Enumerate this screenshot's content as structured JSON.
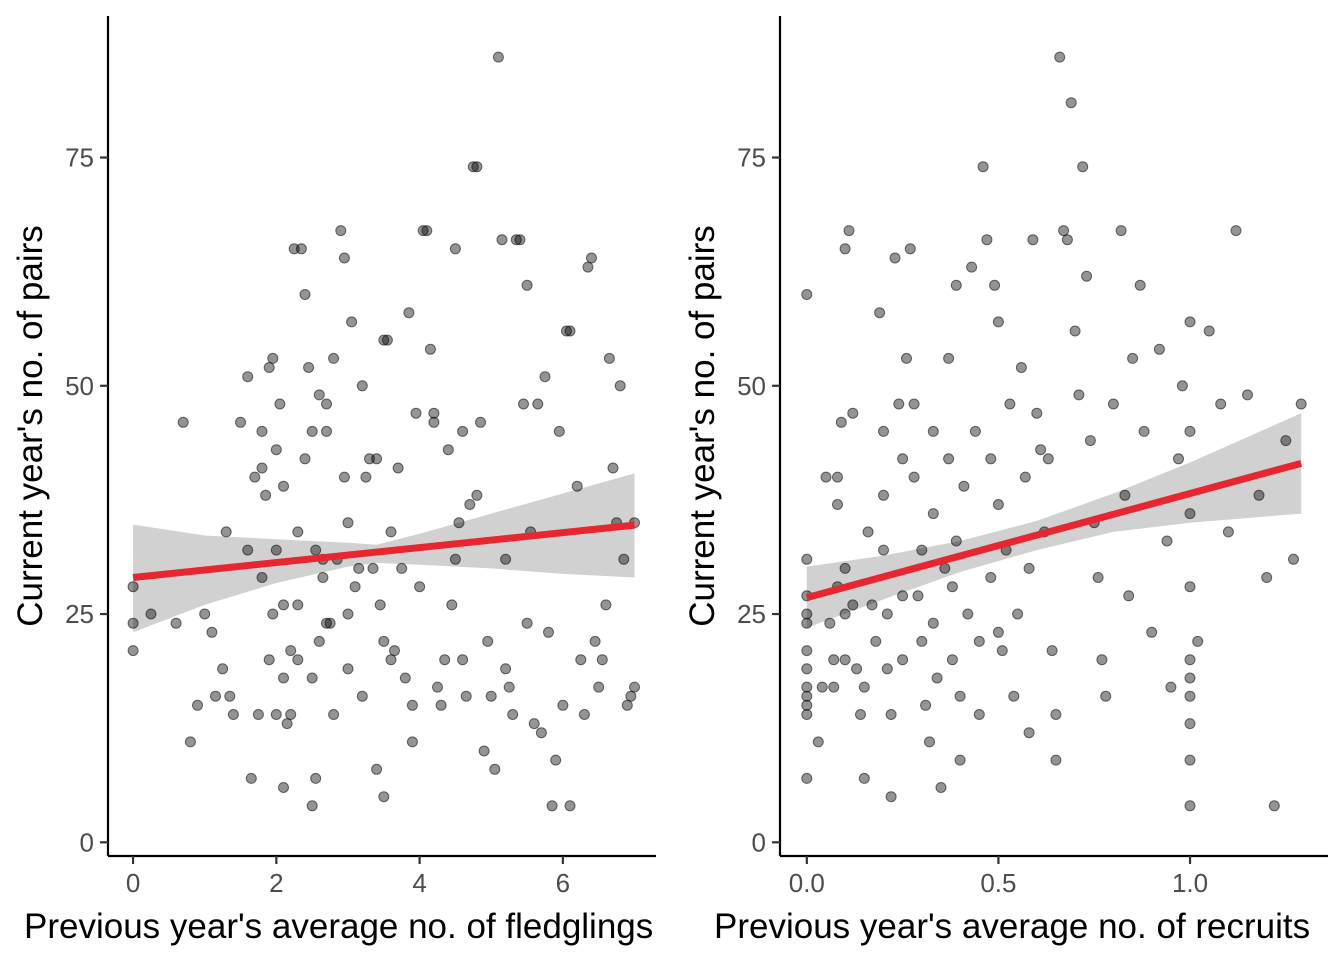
{
  "chart_data": [
    {
      "type": "scatter",
      "xlabel": "Previous year's average no. of fledglings",
      "ylabel": "Current year's no. of pairs",
      "xlim": [
        -0.35,
        7.3
      ],
      "ylim": [
        -1.5,
        90.5
      ],
      "x_ticks": [
        0,
        2,
        4,
        6
      ],
      "y_ticks": [
        0,
        25,
        50,
        75
      ],
      "x_tick_labels": [
        "0",
        "2",
        "4",
        "6"
      ],
      "y_tick_labels": [
        "0",
        "25",
        "50",
        "75"
      ],
      "grid": false,
      "legend": "none",
      "point_color": "#000000",
      "point_opacity": 0.42,
      "fit": {
        "type": "linear",
        "intercept": 29.0,
        "slope": 0.82,
        "x_range": [
          0,
          7
        ],
        "color": "#e8262f"
      },
      "confidence_band": {
        "color": "#cccccc",
        "lower": [
          [
            0,
            23.0
          ],
          [
            1,
            26.0
          ],
          [
            2,
            28.4
          ],
          [
            3,
            30.2
          ],
          [
            3.4,
            30.6
          ],
          [
            4,
            30.4
          ],
          [
            5,
            30.0
          ],
          [
            6,
            29.4
          ],
          [
            7,
            29.0
          ]
        ],
        "upper": [
          [
            0,
            34.8
          ],
          [
            1,
            33.6
          ],
          [
            2,
            33.2
          ],
          [
            3,
            32.8
          ],
          [
            3.4,
            32.6
          ],
          [
            4,
            33.8
          ],
          [
            5,
            36.0
          ],
          [
            6,
            38.2
          ],
          [
            7,
            40.4
          ]
        ]
      },
      "points": [
        [
          0,
          28
        ],
        [
          0,
          24
        ],
        [
          0,
          21
        ],
        [
          0.25,
          25
        ],
        [
          0.6,
          24
        ],
        [
          0.7,
          46
        ],
        [
          0.8,
          11
        ],
        [
          0.9,
          15
        ],
        [
          1.0,
          25
        ],
        [
          1.1,
          23
        ],
        [
          1.15,
          16
        ],
        [
          1.25,
          19
        ],
        [
          1.3,
          34
        ],
        [
          1.35,
          16
        ],
        [
          1.4,
          14
        ],
        [
          1.5,
          46
        ],
        [
          1.6,
          51
        ],
        [
          1.6,
          32
        ],
        [
          1.65,
          7
        ],
        [
          1.7,
          40
        ],
        [
          1.75,
          14
        ],
        [
          1.8,
          45
        ],
        [
          1.8,
          41
        ],
        [
          1.8,
          29
        ],
        [
          1.85,
          38
        ],
        [
          1.9,
          20
        ],
        [
          1.9,
          52
        ],
        [
          1.95,
          53
        ],
        [
          1.95,
          25
        ],
        [
          2.0,
          43
        ],
        [
          2.0,
          32
        ],
        [
          2.0,
          14
        ],
        [
          2.05,
          48
        ],
        [
          2.1,
          39
        ],
        [
          2.1,
          26
        ],
        [
          2.1,
          18
        ],
        [
          2.1,
          6
        ],
        [
          2.15,
          13
        ],
        [
          2.2,
          21
        ],
        [
          2.2,
          14
        ],
        [
          2.25,
          65
        ],
        [
          2.3,
          26
        ],
        [
          2.3,
          34
        ],
        [
          2.3,
          20
        ],
        [
          2.35,
          65
        ],
        [
          2.4,
          42
        ],
        [
          2.4,
          60
        ],
        [
          2.45,
          52
        ],
        [
          2.5,
          45
        ],
        [
          2.5,
          18
        ],
        [
          2.5,
          4
        ],
        [
          2.55,
          7
        ],
        [
          2.55,
          32
        ],
        [
          2.6,
          49
        ],
        [
          2.6,
          22
        ],
        [
          2.65,
          31
        ],
        [
          2.65,
          29
        ],
        [
          2.7,
          48
        ],
        [
          2.7,
          24
        ],
        [
          2.7,
          45
        ],
        [
          2.75,
          24
        ],
        [
          2.8,
          53
        ],
        [
          2.8,
          14
        ],
        [
          2.85,
          31
        ],
        [
          2.9,
          67
        ],
        [
          2.95,
          64
        ],
        [
          2.95,
          40
        ],
        [
          3.0,
          35
        ],
        [
          3.0,
          25
        ],
        [
          3.0,
          19
        ],
        [
          3.05,
          57
        ],
        [
          3.1,
          28
        ],
        [
          3.15,
          30
        ],
        [
          3.2,
          50
        ],
        [
          3.2,
          16
        ],
        [
          3.25,
          40
        ],
        [
          3.3,
          42
        ],
        [
          3.35,
          30
        ],
        [
          3.4,
          42
        ],
        [
          3.4,
          8
        ],
        [
          3.45,
          26
        ],
        [
          3.5,
          55
        ],
        [
          3.5,
          22
        ],
        [
          3.5,
          5
        ],
        [
          3.55,
          55
        ],
        [
          3.6,
          34
        ],
        [
          3.6,
          20
        ],
        [
          3.65,
          21
        ],
        [
          3.7,
          41
        ],
        [
          3.75,
          30
        ],
        [
          3.8,
          18
        ],
        [
          3.85,
          58
        ],
        [
          3.9,
          11
        ],
        [
          3.9,
          15
        ],
        [
          3.95,
          47
        ],
        [
          4.0,
          28
        ],
        [
          4.05,
          67
        ],
        [
          4.1,
          67
        ],
        [
          4.15,
          54
        ],
        [
          4.2,
          46
        ],
        [
          4.2,
          47
        ],
        [
          4.25,
          17
        ],
        [
          4.3,
          15
        ],
        [
          4.35,
          20
        ],
        [
          4.4,
          43
        ],
        [
          4.45,
          26
        ],
        [
          4.5,
          31
        ],
        [
          4.5,
          65
        ],
        [
          4.55,
          35
        ],
        [
          4.6,
          45
        ],
        [
          4.6,
          20
        ],
        [
          4.65,
          16
        ],
        [
          4.7,
          37
        ],
        [
          4.75,
          74
        ],
        [
          4.8,
          74
        ],
        [
          4.8,
          38
        ],
        [
          4.85,
          46
        ],
        [
          4.9,
          10
        ],
        [
          4.95,
          22
        ],
        [
          5.0,
          16
        ],
        [
          5.05,
          8
        ],
        [
          5.1,
          86
        ],
        [
          5.15,
          66
        ],
        [
          5.2,
          31
        ],
        [
          5.2,
          19
        ],
        [
          5.25,
          17
        ],
        [
          5.3,
          14
        ],
        [
          5.35,
          66
        ],
        [
          5.4,
          66
        ],
        [
          5.45,
          48
        ],
        [
          5.5,
          61
        ],
        [
          5.5,
          24
        ],
        [
          5.55,
          34
        ],
        [
          5.6,
          13
        ],
        [
          5.65,
          48
        ],
        [
          5.7,
          12
        ],
        [
          5.75,
          51
        ],
        [
          5.8,
          23
        ],
        [
          5.85,
          4
        ],
        [
          5.9,
          9
        ],
        [
          5.95,
          45
        ],
        [
          6.0,
          15
        ],
        [
          6.05,
          56
        ],
        [
          6.1,
          56
        ],
        [
          6.1,
          4
        ],
        [
          6.2,
          39
        ],
        [
          6.25,
          20
        ],
        [
          6.3,
          14
        ],
        [
          6.35,
          63
        ],
        [
          6.4,
          64
        ],
        [
          6.45,
          22
        ],
        [
          6.5,
          17
        ],
        [
          6.55,
          20
        ],
        [
          6.6,
          26
        ],
        [
          6.65,
          53
        ],
        [
          6.7,
          41
        ],
        [
          6.75,
          35
        ],
        [
          6.8,
          50
        ],
        [
          6.85,
          31
        ],
        [
          6.9,
          15
        ],
        [
          6.95,
          16
        ],
        [
          7.0,
          17
        ],
        [
          7.0,
          35
        ]
      ]
    },
    {
      "type": "scatter",
      "xlabel": "Previous year's average no. of recruits",
      "ylabel": "Current year's no. of pairs",
      "xlim": [
        -0.07,
        1.36
      ],
      "ylim": [
        -1.5,
        90.5
      ],
      "x_ticks": [
        0.0,
        0.5,
        1.0
      ],
      "y_ticks": [
        0,
        25,
        50,
        75
      ],
      "x_tick_labels": [
        "0.0",
        "0.5",
        "1.0"
      ],
      "y_tick_labels": [
        "0",
        "25",
        "50",
        "75"
      ],
      "grid": false,
      "legend": "none",
      "point_color": "#000000",
      "point_opacity": 0.42,
      "fit": {
        "type": "linear",
        "intercept": 26.8,
        "slope": 11.4,
        "x_range": [
          0,
          1.29
        ],
        "color": "#e8262f"
      },
      "confidence_band": {
        "color": "#cccccc",
        "lower": [
          [
            0,
            23.5
          ],
          [
            0.2,
            26.6
          ],
          [
            0.4,
            29.6
          ],
          [
            0.6,
            32.0
          ],
          [
            0.8,
            34.0
          ],
          [
            1.0,
            35.0
          ],
          [
            1.29,
            36.0
          ]
        ],
        "upper": [
          [
            0,
            30.2
          ],
          [
            0.2,
            31.4
          ],
          [
            0.4,
            33.0
          ],
          [
            0.6,
            35.2
          ],
          [
            0.8,
            38.2
          ],
          [
            1.0,
            41.6
          ],
          [
            1.29,
            47.0
          ]
        ]
      },
      "points": [
        [
          0,
          60
        ],
        [
          0,
          31
        ],
        [
          0,
          27
        ],
        [
          0,
          25
        ],
        [
          0,
          24
        ],
        [
          0,
          21
        ],
        [
          0,
          19
        ],
        [
          0,
          17
        ],
        [
          0,
          16
        ],
        [
          0,
          15
        ],
        [
          0,
          14
        ],
        [
          0,
          7
        ],
        [
          0.03,
          11
        ],
        [
          0.04,
          17
        ],
        [
          0.05,
          40
        ],
        [
          0.06,
          24
        ],
        [
          0.07,
          20
        ],
        [
          0.07,
          17
        ],
        [
          0.08,
          40
        ],
        [
          0.08,
          37
        ],
        [
          0.08,
          28
        ],
        [
          0.09,
          46
        ],
        [
          0.1,
          65
        ],
        [
          0.1,
          30
        ],
        [
          0.1,
          25
        ],
        [
          0.1,
          20
        ],
        [
          0.11,
          67
        ],
        [
          0.12,
          47
        ],
        [
          0.12,
          26
        ],
        [
          0.13,
          19
        ],
        [
          0.14,
          14
        ],
        [
          0.15,
          17
        ],
        [
          0.15,
          7
        ],
        [
          0.16,
          34
        ],
        [
          0.17,
          26
        ],
        [
          0.18,
          22
        ],
        [
          0.19,
          58
        ],
        [
          0.2,
          45
        ],
        [
          0.2,
          38
        ],
        [
          0.2,
          32
        ],
        [
          0.21,
          25
        ],
        [
          0.21,
          19
        ],
        [
          0.22,
          14
        ],
        [
          0.22,
          5
        ],
        [
          0.23,
          64
        ],
        [
          0.24,
          48
        ],
        [
          0.25,
          42
        ],
        [
          0.25,
          27
        ],
        [
          0.25,
          20
        ],
        [
          0.26,
          53
        ],
        [
          0.27,
          65
        ],
        [
          0.28,
          48
        ],
        [
          0.28,
          40
        ],
        [
          0.29,
          27
        ],
        [
          0.3,
          32
        ],
        [
          0.3,
          22
        ],
        [
          0.31,
          15
        ],
        [
          0.32,
          11
        ],
        [
          0.33,
          45
        ],
        [
          0.33,
          36
        ],
        [
          0.33,
          24
        ],
        [
          0.34,
          18
        ],
        [
          0.35,
          6
        ],
        [
          0.36,
          30
        ],
        [
          0.37,
          53
        ],
        [
          0.37,
          42
        ],
        [
          0.38,
          28
        ],
        [
          0.38,
          20
        ],
        [
          0.39,
          61
        ],
        [
          0.39,
          33
        ],
        [
          0.4,
          16
        ],
        [
          0.4,
          9
        ],
        [
          0.41,
          39
        ],
        [
          0.42,
          25
        ],
        [
          0.43,
          63
        ],
        [
          0.44,
          45
        ],
        [
          0.45,
          22
        ],
        [
          0.45,
          14
        ],
        [
          0.46,
          74
        ],
        [
          0.47,
          66
        ],
        [
          0.48,
          42
        ],
        [
          0.48,
          29
        ],
        [
          0.49,
          61
        ],
        [
          0.5,
          57
        ],
        [
          0.5,
          37
        ],
        [
          0.5,
          23
        ],
        [
          0.51,
          21
        ],
        [
          0.52,
          32
        ],
        [
          0.53,
          48
        ],
        [
          0.54,
          16
        ],
        [
          0.55,
          25
        ],
        [
          0.56,
          52
        ],
        [
          0.57,
          40
        ],
        [
          0.58,
          30
        ],
        [
          0.58,
          12
        ],
        [
          0.59,
          66
        ],
        [
          0.6,
          47
        ],
        [
          0.61,
          43
        ],
        [
          0.62,
          34
        ],
        [
          0.63,
          42
        ],
        [
          0.64,
          21
        ],
        [
          0.65,
          14
        ],
        [
          0.65,
          9
        ],
        [
          0.66,
          86
        ],
        [
          0.67,
          67
        ],
        [
          0.68,
          66
        ],
        [
          0.69,
          81
        ],
        [
          0.7,
          56
        ],
        [
          0.71,
          49
        ],
        [
          0.72,
          74
        ],
        [
          0.73,
          62
        ],
        [
          0.74,
          44
        ],
        [
          0.75,
          35
        ],
        [
          0.76,
          29
        ],
        [
          0.77,
          20
        ],
        [
          0.78,
          16
        ],
        [
          0.8,
          48
        ],
        [
          0.82,
          67
        ],
        [
          0.83,
          38
        ],
        [
          0.84,
          27
        ],
        [
          0.85,
          53
        ],
        [
          0.87,
          61
        ],
        [
          0.88,
          45
        ],
        [
          0.9,
          23
        ],
        [
          0.92,
          54
        ],
        [
          0.94,
          33
        ],
        [
          0.95,
          17
        ],
        [
          0.97,
          42
        ],
        [
          0.98,
          50
        ],
        [
          1.0,
          57
        ],
        [
          1.0,
          45
        ],
        [
          1.0,
          36
        ],
        [
          1.0,
          28
        ],
        [
          1.0,
          20
        ],
        [
          1.0,
          18
        ],
        [
          1.0,
          16
        ],
        [
          1.0,
          13
        ],
        [
          1.0,
          9
        ],
        [
          1.0,
          4
        ],
        [
          1.02,
          22
        ],
        [
          1.05,
          56
        ],
        [
          1.08,
          48
        ],
        [
          1.1,
          34
        ],
        [
          1.12,
          67
        ],
        [
          1.15,
          49
        ],
        [
          1.18,
          38
        ],
        [
          1.2,
          29
        ],
        [
          1.22,
          4
        ],
        [
          1.25,
          44
        ],
        [
          1.27,
          31
        ],
        [
          1.29,
          48
        ]
      ]
    }
  ]
}
